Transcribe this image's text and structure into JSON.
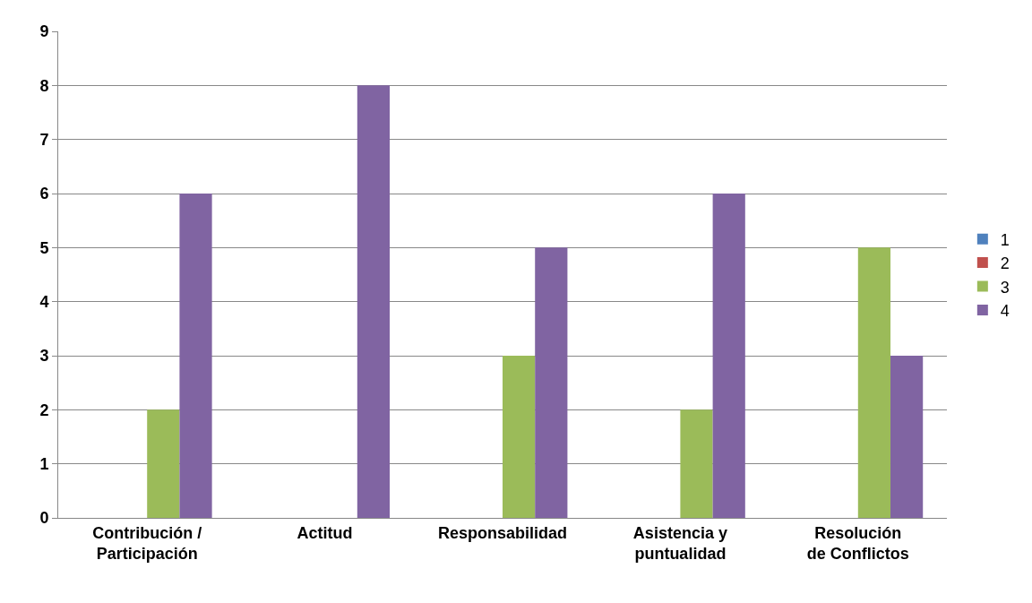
{
  "chart_data": {
    "type": "bar",
    "categories": [
      "Contribución / Participación",
      "Actitud",
      "Responsabilidad",
      "Asistencia y puntualidad",
      "Resolución de Conflictos"
    ],
    "series": [
      {
        "name": "1",
        "color": "#4f81bd",
        "values": [
          0,
          0,
          0,
          0,
          0
        ]
      },
      {
        "name": "2",
        "color": "#c0504d",
        "values": [
          0,
          0,
          0,
          0,
          0
        ]
      },
      {
        "name": "3",
        "color": "#9bbb59",
        "values": [
          2,
          0,
          3,
          2,
          5
        ]
      },
      {
        "name": "4",
        "color": "#8064a2",
        "values": [
          6,
          8,
          5,
          6,
          3
        ]
      }
    ],
    "ylim": [
      0,
      9
    ],
    "yticks": [
      0,
      1,
      2,
      3,
      4,
      5,
      6,
      7,
      8,
      9
    ],
    "grid": "y",
    "legend": "right"
  }
}
